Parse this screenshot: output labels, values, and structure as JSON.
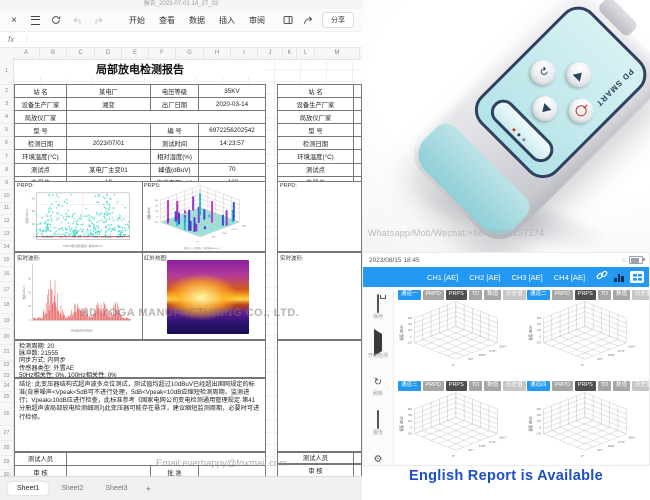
{
  "spreadsheet": {
    "window_title": "报告_2023-07-01 14_27_33",
    "menu_tabs": [
      "开始",
      "查看",
      "数据",
      "插入",
      "审阅"
    ],
    "share_label": "分享",
    "formula_label": "fx",
    "columns": [
      "A",
      "B",
      "C",
      "D",
      "E",
      "F",
      "G",
      "H",
      "I",
      "J",
      "K",
      "L",
      "M"
    ],
    "row_count": 32,
    "sheet_tabs": [
      "Sheet1",
      "Sheet2",
      "Sheet3"
    ],
    "add_sheet_label": "+"
  },
  "report": {
    "title": "局部放电检测报告",
    "info_rows": [
      {
        "l1": "站  名",
        "v1": "某电厂",
        "l2": "电压等级",
        "v2": "35KV"
      },
      {
        "l1": "设备生产厂家",
        "v1": "湘变",
        "l2": "出厂日期",
        "v2": "2020-03-14"
      },
      {
        "l1": "局放仪厂家",
        "v1": "",
        "l2": "",
        "v2": ""
      },
      {
        "l1": "型  号",
        "v1": "",
        "l2": "编  号",
        "v2": "6972256202542"
      },
      {
        "l1": "检测日期",
        "v1": "2023/07/01",
        "l2": "测试时间",
        "v2": "14:23:57"
      },
      {
        "l1": "环境温度(°C)",
        "v1": "",
        "l2": "相对湿度(%)",
        "v2": ""
      },
      {
        "l1": "测试点",
        "v1": "某电厂主变01",
        "l2": "峰值(dBuV)",
        "v2": "70"
      },
      {
        "l1": "背景值",
        "v1": "19",
        "l2": "峰值电压(uV)",
        "v2": "-122"
      }
    ],
    "prpd_label": "PRPD:",
    "prps_label": "PRPS:",
    "wave_label": "实时波形:",
    "thermal_label": "红外热图:",
    "amp_axis": "幅值(dBuV)",
    "prpd_caption": "PRPD相位图(相位°-幅值dBuV)",
    "prps_caption": "相位(°)-周期(T)-幅值(dBuV)",
    "wave_caption": "时间轴(时间-幅值)",
    "params": [
      "检测周期: 20",
      "脉冲数: 21555",
      "同步方式: 内同步",
      "传感器类型: 外置AE",
      "50Hz相关性: 0%, 100Hz相关性: 0%"
    ],
    "conclusion": "结论: 此变压器结构式超声波多点位测试，测试值均超过10dBuV已经超出国网规定的标准(背景噪声<Vpeak<5dB可不进行处理，5dB<Vpeak<10dB应缩短检测周期，监测进行；Vpeak≥10dB应进行检查，此标准参考《国家电网公司变电检测通用管理规定·第41分册超声波局部放电检测细则》)此变压器可能存在悬浮，建议缩短监测周期，必要时可进行检修。",
    "tester_label": "测试人员",
    "review_label": "审  核",
    "approve_label": "批  准"
  },
  "watermarks": {
    "manufacturer": "HD YOGA MANUFACTURING CO., LTD.",
    "email": "Email:everhappy@foxmail.com",
    "whatsapp": "Whatsapp/Mob/Wechat:+86-18986157274"
  },
  "device": {
    "brand": "PD SMART"
  },
  "app": {
    "status_time": "2023/08/15 18:45",
    "channels": [
      "CH1 [AE]",
      "CH2 [AE]",
      "CH3 [AE]",
      "CH4 [AE]"
    ],
    "sidebar": [
      "保存",
      "开始检测",
      "刷新",
      "报告",
      "设置"
    ],
    "panel_channels": [
      "通道一",
      "通道二",
      "通道三",
      "通道四"
    ],
    "panel_tabs": [
      "PRPD",
      "PRPS",
      "TD",
      "数值",
      "历史值"
    ],
    "active_panel_tab": "PRPS",
    "chart": {
      "ylabel": "幅值 dBuV",
      "yticks": [
        "60",
        "40",
        "20",
        "0",
        "-20"
      ],
      "xticks": [
        "90°",
        "180°",
        "270°",
        "360°"
      ],
      "origin": "0°"
    }
  },
  "footer": {
    "text": "English Report is Available"
  },
  "colors": {
    "accent_blue": "#2499f3",
    "footer_blue": "#1d4fc4",
    "scatter": "#2fd6c8",
    "wave": "#e03030"
  }
}
